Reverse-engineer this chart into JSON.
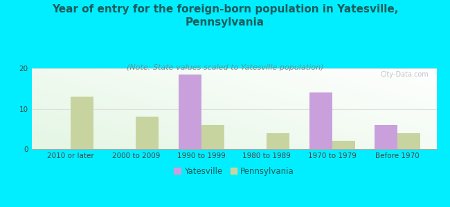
{
  "categories": [
    "2010 or later",
    "2000 to 2009",
    "1990 to 1999",
    "1980 to 1989",
    "1970 to 1979",
    "Before 1970"
  ],
  "yatesville": [
    0,
    0,
    18.5,
    0,
    14.0,
    6.0
  ],
  "pennsylvania": [
    13.0,
    8.0,
    6.0,
    4.0,
    2.0,
    4.0
  ],
  "yatesville_color": "#c9a0dc",
  "pennsylvania_color": "#c8d4a0",
  "title": "Year of entry for the foreign-born population in Yatesville,\nPennsylvania",
  "subtitle": "(Note: State values scaled to Yatesville population)",
  "ylim": [
    0,
    20
  ],
  "yticks": [
    0,
    10,
    20
  ],
  "background_color": "#00eeff",
  "plot_bg_color_bottom_left": "#c8e6c8",
  "plot_bg_color_top_right": "#f8fff8",
  "grid_color": "#dddddd",
  "watermark": "City-Data.com",
  "legend_yatesville": "Yatesville",
  "legend_pennsylvania": "Pennsylvania",
  "bar_width": 0.35,
  "title_fontsize": 11,
  "subtitle_fontsize": 8,
  "tick_fontsize": 7.5,
  "legend_fontsize": 8.5,
  "title_color": "#1a5c5c",
  "subtitle_color": "#6a9090",
  "tick_color": "#444444",
  "watermark_color": "#b0c0c0"
}
